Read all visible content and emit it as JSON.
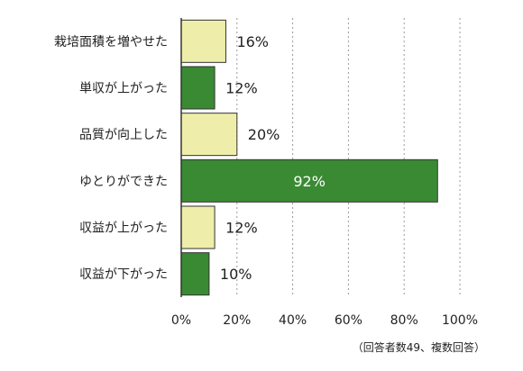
{
  "chart_data": {
    "type": "bar",
    "orientation": "horizontal",
    "categories": [
      "栽培面積を増やせた",
      "単収が上がった",
      "品質が向上した",
      "ゆとりができた",
      "収益が上がった",
      "収益が下がった"
    ],
    "values": [
      16,
      12,
      20,
      92,
      12,
      10
    ],
    "value_labels": [
      "16%",
      "12%",
      "20%",
      "92%",
      "12%",
      "10%"
    ],
    "xlim": [
      0,
      100
    ],
    "xticks": [
      "0%",
      "20%",
      "40%",
      "60%",
      "80%",
      "100%"
    ],
    "grid": "vertical dotted",
    "bar_colors": [
      "#eeeeaa",
      "#3a8a34",
      "#eeeeaa",
      "#3a8a34",
      "#eeeeaa",
      "#3a8a34"
    ],
    "bar_stroke": "#333333",
    "note": "（回答者数49、複数回答）"
  }
}
